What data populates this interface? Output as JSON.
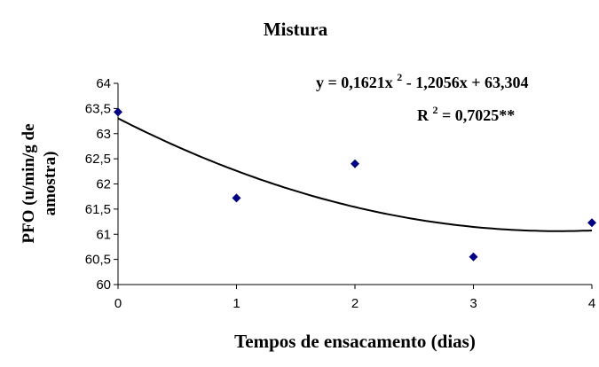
{
  "chart_data": {
    "type": "scatter",
    "title": "Mistura",
    "xlabel": "Tempos de ensacamento (dias)",
    "ylabel_line1": "PFO (u/min/g de",
    "ylabel_line2": "amostra)",
    "x_ticks": [
      "0",
      "1",
      "2",
      "3",
      "4"
    ],
    "y_ticks": [
      "60",
      "60,5",
      "61",
      "61,5",
      "62",
      "62,5",
      "63",
      "63,5",
      "64"
    ],
    "xlim": [
      0,
      4
    ],
    "ylim": [
      60,
      64
    ],
    "grid": false,
    "series": [
      {
        "marker": "diamond",
        "color": "#000080",
        "points": [
          {
            "x": 0,
            "y": 63.43
          },
          {
            "x": 1,
            "y": 61.72
          },
          {
            "x": 2,
            "y": 62.4
          },
          {
            "x": 3,
            "y": 60.55
          },
          {
            "x": 4,
            "y": 61.23
          }
        ]
      }
    ],
    "trendline": {
      "type": "polynomial",
      "coefficients": [
        0.1621,
        -1.2056,
        63.304
      ],
      "color": "#000000"
    },
    "equation": {
      "lhs": "y = 0,1621x",
      "power": "2",
      "rhs": " - 1,2056x + 63,304"
    },
    "r_squared": {
      "lhs": "R",
      "power": "2",
      "rhs": " = 0,7025**"
    }
  }
}
